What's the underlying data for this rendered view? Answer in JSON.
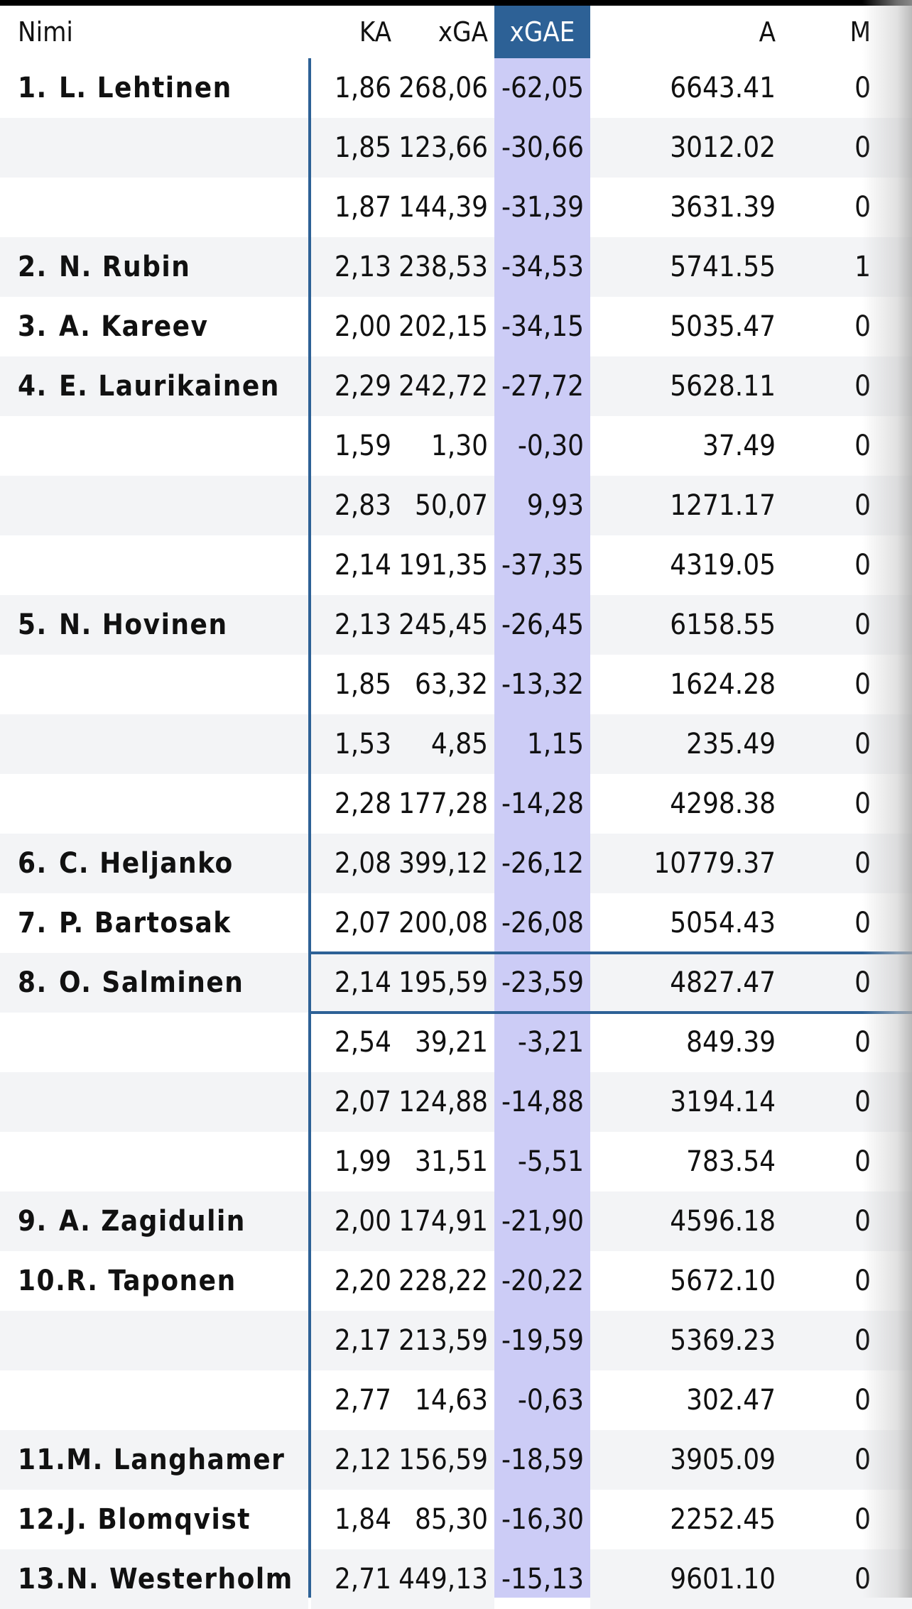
{
  "columns": {
    "nimi": "Nimi",
    "ka": "KA",
    "xga": "xGA",
    "xgae": "xGAE",
    "a": "A",
    "m": "M"
  },
  "colors": {
    "header_highlight": "#2d6196",
    "xgae_band": "#ccccf6",
    "row_alt": "#f3f4f6",
    "divider": "#2d6196"
  },
  "sort_column": "xGAE",
  "selected_row": 15,
  "rows": [
    {
      "rank": "1.",
      "name": "L. Lehtinen",
      "ka": "1,86",
      "xga": "268,06",
      "xgae": "-62,05",
      "a": "6643.41",
      "m": "0"
    },
    {
      "rank": "",
      "name": "",
      "ka": "1,85",
      "xga": "123,66",
      "xgae": "-30,66",
      "a": "3012.02",
      "m": "0"
    },
    {
      "rank": "",
      "name": "",
      "ka": "1,87",
      "xga": "144,39",
      "xgae": "-31,39",
      "a": "3631.39",
      "m": "0"
    },
    {
      "rank": "2.",
      "name": "N. Rubin",
      "ka": "2,13",
      "xga": "238,53",
      "xgae": "-34,53",
      "a": "5741.55",
      "m": "1"
    },
    {
      "rank": "3.",
      "name": "A. Kareev",
      "ka": "2,00",
      "xga": "202,15",
      "xgae": "-34,15",
      "a": "5035.47",
      "m": "0"
    },
    {
      "rank": "4.",
      "name": "E. Laurikainen",
      "ka": "2,29",
      "xga": "242,72",
      "xgae": "-27,72",
      "a": "5628.11",
      "m": "0"
    },
    {
      "rank": "",
      "name": "",
      "ka": "1,59",
      "xga": "1,30",
      "xgae": "-0,30",
      "a": "37.49",
      "m": "0"
    },
    {
      "rank": "",
      "name": "",
      "ka": "2,83",
      "xga": "50,07",
      "xgae": "9,93",
      "a": "1271.17",
      "m": "0"
    },
    {
      "rank": "",
      "name": "",
      "ka": "2,14",
      "xga": "191,35",
      "xgae": "-37,35",
      "a": "4319.05",
      "m": "0"
    },
    {
      "rank": "5.",
      "name": "N. Hovinen",
      "ka": "2,13",
      "xga": "245,45",
      "xgae": "-26,45",
      "a": "6158.55",
      "m": "0"
    },
    {
      "rank": "",
      "name": "",
      "ka": "1,85",
      "xga": "63,32",
      "xgae": "-13,32",
      "a": "1624.28",
      "m": "0"
    },
    {
      "rank": "",
      "name": "",
      "ka": "1,53",
      "xga": "4,85",
      "xgae": "1,15",
      "a": "235.49",
      "m": "0"
    },
    {
      "rank": "",
      "name": "",
      "ka": "2,28",
      "xga": "177,28",
      "xgae": "-14,28",
      "a": "4298.38",
      "m": "0"
    },
    {
      "rank": "6.",
      "name": "C. Heljanko",
      "ka": "2,08",
      "xga": "399,12",
      "xgae": "-26,12",
      "a": "10779.37",
      "m": "0"
    },
    {
      "rank": "7.",
      "name": "P. Bartosak",
      "ka": "2,07",
      "xga": "200,08",
      "xgae": "-26,08",
      "a": "5054.43",
      "m": "0"
    },
    {
      "rank": "8.",
      "name": "O. Salminen",
      "ka": "2,14",
      "xga": "195,59",
      "xgae": "-23,59",
      "a": "4827.47",
      "m": "0"
    },
    {
      "rank": "",
      "name": "",
      "ka": "2,54",
      "xga": "39,21",
      "xgae": "-3,21",
      "a": "849.39",
      "m": "0"
    },
    {
      "rank": "",
      "name": "",
      "ka": "2,07",
      "xga": "124,88",
      "xgae": "-14,88",
      "a": "3194.14",
      "m": "0"
    },
    {
      "rank": "",
      "name": "",
      "ka": "1,99",
      "xga": "31,51",
      "xgae": "-5,51",
      "a": "783.54",
      "m": "0"
    },
    {
      "rank": "9.",
      "name": "A. Zagidulin",
      "ka": "2,00",
      "xga": "174,91",
      "xgae": "-21,90",
      "a": "4596.18",
      "m": "0"
    },
    {
      "rank": "10.",
      "name": "R. Taponen",
      "ka": "2,20",
      "xga": "228,22",
      "xgae": "-20,22",
      "a": "5672.10",
      "m": "0"
    },
    {
      "rank": "",
      "name": "",
      "ka": "2,17",
      "xga": "213,59",
      "xgae": "-19,59",
      "a": "5369.23",
      "m": "0"
    },
    {
      "rank": "",
      "name": "",
      "ka": "2,77",
      "xga": "14,63",
      "xgae": "-0,63",
      "a": "302.47",
      "m": "0"
    },
    {
      "rank": "11.",
      "name": "M. Langhamer",
      "ka": "2,12",
      "xga": "156,59",
      "xgae": "-18,59",
      "a": "3905.09",
      "m": "0"
    },
    {
      "rank": "12.",
      "name": "J. Blomqvist",
      "ka": "1,84",
      "xga": "85,30",
      "xgae": "-16,30",
      "a": "2252.45",
      "m": "0"
    },
    {
      "rank": "13.",
      "name": "N. Westerholm",
      "ka": "2,71",
      "xga": "449,13",
      "xgae": "-15,13",
      "a": "9601.10",
      "m": "0"
    }
  ]
}
